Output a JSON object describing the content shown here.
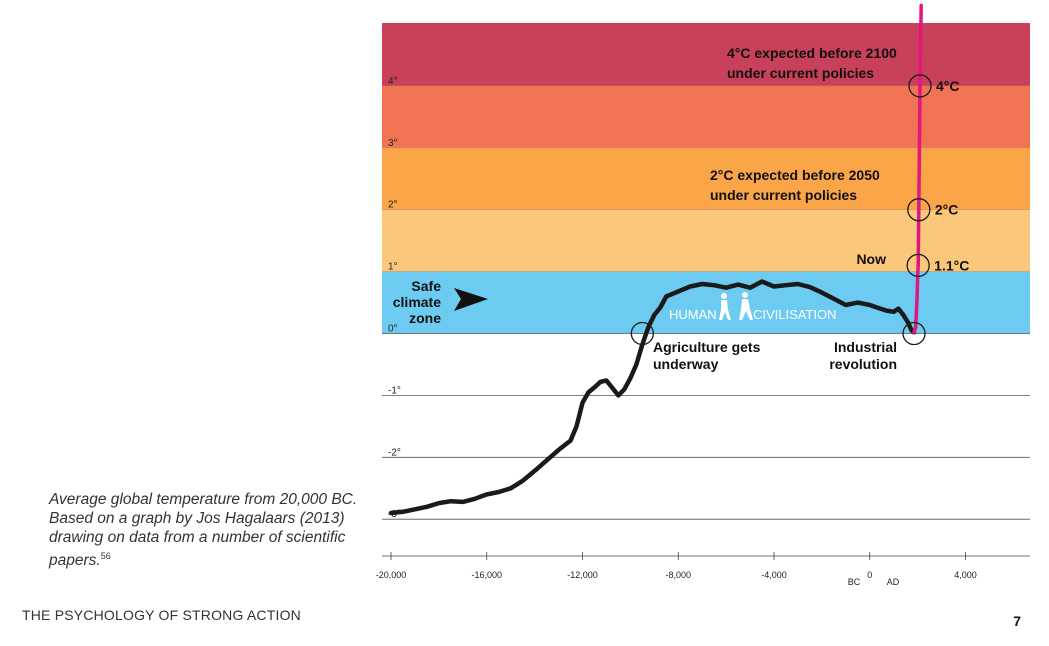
{
  "chart_data": {
    "type": "line",
    "title": "",
    "xlabel": "",
    "ylabel": "",
    "xlim": [
      -20000,
      6700
    ],
    "ylim": [
      -3.3,
      5.2
    ],
    "grid": true,
    "y_ticks": [
      "4°",
      "3°",
      "2°",
      "1°",
      "0°",
      "-1°",
      "-2°",
      "-3°"
    ],
    "y_tick_values": [
      4,
      3,
      2,
      1,
      0,
      -1,
      -2,
      -3
    ],
    "x_ticks": [
      "-20,000",
      "-16,000",
      "-12,000",
      "-8,000",
      "-4,000",
      "0",
      "4,000"
    ],
    "x_tick_values": [
      -20000,
      -16000,
      -12000,
      -8000,
      -4000,
      0,
      4000
    ],
    "era_labels": {
      "bc": "BC",
      "ad": "AD"
    },
    "bands": [
      {
        "from": 4,
        "to": 5,
        "color": "#c9405a"
      },
      {
        "from": 3,
        "to": 4,
        "color": "#f07454"
      },
      {
        "from": 2,
        "to": 3,
        "color": "#f9a548"
      },
      {
        "from": 1,
        "to": 2,
        "color": "#fbc77b"
      },
      {
        "from": 0,
        "to": 1,
        "color": "#6dcbf2"
      }
    ],
    "series": [
      {
        "color": "#1a1a1a",
        "points": [
          [
            -20000,
            -2.9
          ],
          [
            -19500,
            -2.88
          ],
          [
            -19000,
            -2.84
          ],
          [
            -18500,
            -2.8
          ],
          [
            -18000,
            -2.74
          ],
          [
            -17500,
            -2.71
          ],
          [
            -17000,
            -2.72
          ],
          [
            -16500,
            -2.67
          ],
          [
            -16000,
            -2.6
          ],
          [
            -15500,
            -2.56
          ],
          [
            -15000,
            -2.5
          ],
          [
            -14500,
            -2.38
          ],
          [
            -14000,
            -2.22
          ],
          [
            -13500,
            -2.05
          ],
          [
            -13000,
            -1.88
          ],
          [
            -12500,
            -1.73
          ],
          [
            -12250,
            -1.5
          ],
          [
            -12000,
            -1.12
          ],
          [
            -11750,
            -0.95
          ],
          [
            -11500,
            -0.87
          ],
          [
            -11250,
            -0.78
          ],
          [
            -11000,
            -0.76
          ],
          [
            -10750,
            -0.88
          ],
          [
            -10500,
            -1.0
          ],
          [
            -10250,
            -0.9
          ],
          [
            -10000,
            -0.72
          ],
          [
            -9750,
            -0.5
          ],
          [
            -9500,
            -0.18
          ],
          [
            -9250,
            0.1
          ],
          [
            -9000,
            0.3
          ],
          [
            -8750,
            0.42
          ],
          [
            -8500,
            0.6
          ],
          [
            -8000,
            0.68
          ],
          [
            -7500,
            0.76
          ],
          [
            -7000,
            0.8
          ],
          [
            -6500,
            0.78
          ],
          [
            -6000,
            0.74
          ],
          [
            -5500,
            0.79
          ],
          [
            -5000,
            0.74
          ],
          [
            -4500,
            0.84
          ],
          [
            -4000,
            0.76
          ],
          [
            -3500,
            0.78
          ],
          [
            -3000,
            0.8
          ],
          [
            -2500,
            0.75
          ],
          [
            -2000,
            0.66
          ],
          [
            -1500,
            0.56
          ],
          [
            -1000,
            0.46
          ],
          [
            -500,
            0.5
          ],
          [
            0,
            0.46
          ],
          [
            300,
            0.42
          ],
          [
            700,
            0.37
          ],
          [
            1000,
            0.35
          ],
          [
            1200,
            0.4
          ],
          [
            1400,
            0.3
          ],
          [
            1600,
            0.18
          ],
          [
            1750,
            0.05
          ],
          [
            1850,
            0.02
          ]
        ]
      },
      {
        "color": "#e3157f",
        "points": [
          [
            1850,
            0.02
          ],
          [
            1920,
            0.1
          ],
          [
            1980,
            0.6
          ],
          [
            2000,
            0.9
          ],
          [
            2023,
            1.1
          ],
          [
            2050,
            2.0
          ],
          [
            2100,
            4.0
          ],
          [
            2150,
            5.3
          ]
        ]
      }
    ],
    "markers": [
      {
        "label": "4°C",
        "x": 2100,
        "y": 4.0
      },
      {
        "label": "2°C",
        "x": 2050,
        "y": 2.0
      },
      {
        "label": "1.1°C",
        "x": 2023,
        "y": 1.1
      },
      {
        "label": "",
        "x": 1850,
        "y": 0.0
      },
      {
        "label": "",
        "x": -9500,
        "y": 0.0
      }
    ],
    "annotations": {
      "scenario_4c": [
        "4°C expected before 2100",
        "under current policies"
      ],
      "scenario_2c": [
        "2°C expected before 2050",
        "under current policies"
      ],
      "now": "Now",
      "safe_zone": [
        "Safe",
        "climate",
        "zone"
      ],
      "human": "HUMAN",
      "civilisation": "CIVILISATION",
      "agriculture": [
        "Agriculture gets",
        "underway"
      ],
      "industrial": [
        "Industrial",
        "revolution"
      ]
    }
  },
  "caption": {
    "text": "Average global temperature from 20,000 BC. Based on a graph by Jos Hagalaars (2013) drawing on data from a number of scientific papers.",
    "footnote": "56"
  },
  "footer": {
    "title": "THE PSYCHOLOGY OF STRONG ACTION",
    "page": "7"
  }
}
